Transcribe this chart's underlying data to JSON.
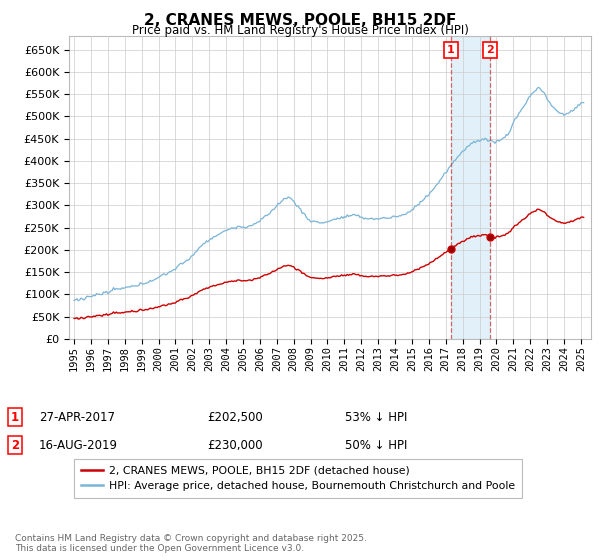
{
  "title": "2, CRANES MEWS, POOLE, BH15 2DF",
  "subtitle": "Price paid vs. HM Land Registry's House Price Index (HPI)",
  "hpi_label": "HPI: Average price, detached house, Bournemouth Christchurch and Poole",
  "property_label": "2, CRANES MEWS, POOLE, BH15 2DF (detached house)",
  "hpi_color": "#7ab4d8",
  "property_color": "#cc0000",
  "shade_color": "#d0e8f5",
  "transaction1_date": "27-APR-2017",
  "transaction1_price": 202500,
  "transaction1_hpi": "53% ↓ HPI",
  "transaction2_date": "16-AUG-2019",
  "transaction2_price": 230000,
  "transaction2_hpi": "50% ↓ HPI",
  "transaction1_x": 2017.29,
  "transaction2_x": 2019.62,
  "footer": "Contains HM Land Registry data © Crown copyright and database right 2025.\nThis data is licensed under the Open Government Licence v3.0.",
  "ylim": [
    0,
    680000
  ],
  "yticks": [
    0,
    50000,
    100000,
    150000,
    200000,
    250000,
    300000,
    350000,
    400000,
    450000,
    500000,
    550000,
    600000,
    650000
  ],
  "background_color": "#ffffff",
  "grid_color": "#cccccc"
}
